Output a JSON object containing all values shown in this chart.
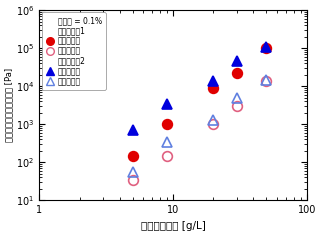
{
  "xlabel": "ゲル化剤濃度 [g/L]",
  "ylabel": "谯蔵弾性率，損失弾性率 [Pa]",
  "xlim": [
    1,
    100
  ],
  "ylim": [
    10,
    1000000
  ],
  "series": {
    "IL1_storage": {
      "x": [
        5,
        9,
        20,
        30,
        50
      ],
      "y": [
        150,
        1000,
        9000,
        22000,
        100000
      ],
      "color": "#e00000",
      "marker": "o",
      "filled": true
    },
    "IL1_loss": {
      "x": [
        5,
        9,
        20,
        30,
        50
      ],
      "y": [
        35,
        150,
        1000,
        3000,
        14000
      ],
      "color": "#e00000",
      "marker": "o",
      "filled": false
    },
    "IL2_storage": {
      "x": [
        5,
        9,
        20,
        30,
        50
      ],
      "y": [
        700,
        3500,
        14000,
        45000,
        105000
      ],
      "color": "#0000dd",
      "marker": "^",
      "filled": true
    },
    "IL2_loss": {
      "x": [
        5,
        9,
        20,
        30,
        50
      ],
      "y": [
        55,
        350,
        1300,
        5000,
        15000
      ],
      "color": "#0000dd",
      "marker": "^",
      "filled": false
    }
  },
  "legend": {
    "strain_label": "ひずみ = 0.1%",
    "IL1_label": "イオン液体1",
    "IL2_label": "イオン液体2",
    "storage_label": "谯蔵弾性率",
    "loss_label": "損失弾性率"
  },
  "marker_size": 7,
  "background_color": "#ffffff"
}
